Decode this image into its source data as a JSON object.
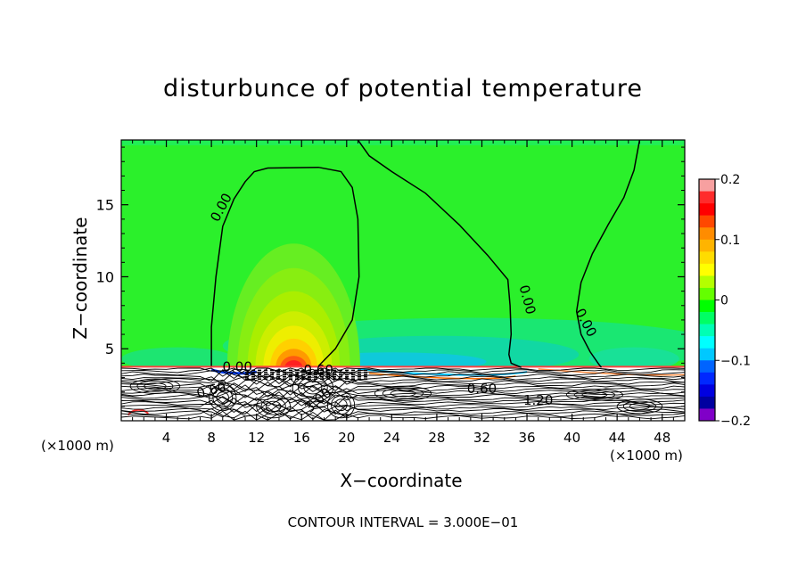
{
  "chart_data": {
    "type": "heatmap",
    "title": "disturbunce of potential temperature",
    "xlabel": "X−coordinate",
    "ylabel": "Z−coordinate",
    "x_unit_left": "(×1000 m)",
    "x_unit_right": "(×1000 m)",
    "xlim": [
      0,
      50
    ],
    "ylim": [
      0,
      19.5
    ],
    "x_ticks": [
      4,
      8,
      12,
      16,
      20,
      24,
      28,
      32,
      36,
      40,
      44,
      48
    ],
    "y_ticks": [
      5,
      10,
      15
    ],
    "colorbar": {
      "range": [
        -0.2,
        0.2
      ],
      "tick_labels": [
        "0.2",
        "0.1",
        "0",
        "−0.1",
        "−0.2"
      ],
      "tick_values": [
        0.2,
        0.1,
        0,
        -0.1,
        -0.2
      ],
      "colors": [
        "#f7a0a0",
        "#ff2b2b",
        "#ff0000",
        "#ff4800",
        "#ff8c00",
        "#ffb400",
        "#ffdc00",
        "#ffff00",
        "#b4ff00",
        "#64ff00",
        "#00ff00",
        "#00ff64",
        "#00ffb4",
        "#00ffff",
        "#00c8ff",
        "#0064ff",
        "#0028ff",
        "#0000e0",
        "#0000a0",
        "#8000c8"
      ]
    },
    "contour_labels": [
      {
        "text": "0.00",
        "x": 8.9,
        "z": 14.8,
        "angle": -62
      },
      {
        "text": "0.00",
        "x": 36.0,
        "z": 8.4,
        "angle": 75
      },
      {
        "text": "0.00",
        "x": 41.2,
        "z": 6.8,
        "angle": 62
      },
      {
        "text": "0.00",
        "x": 10.3,
        "z": 3.7,
        "angle": 0
      },
      {
        "text": "0.60",
        "x": 8.0,
        "z": 2.1,
        "angle": -15
      },
      {
        "text": "3.00",
        "x": 17.5,
        "z": 1.4,
        "angle": -40
      },
      {
        "text": "0.60",
        "x": 17.5,
        "z": 3.5,
        "angle": 0
      },
      {
        "text": "0.60",
        "x": 32.0,
        "z": 2.2,
        "angle": 0
      },
      {
        "text": "1.20",
        "x": 37.0,
        "z": 1.4,
        "angle": 0
      }
    ],
    "contour_interval_text": "CONTOUR INTERVAL = 3.000E−01"
  }
}
